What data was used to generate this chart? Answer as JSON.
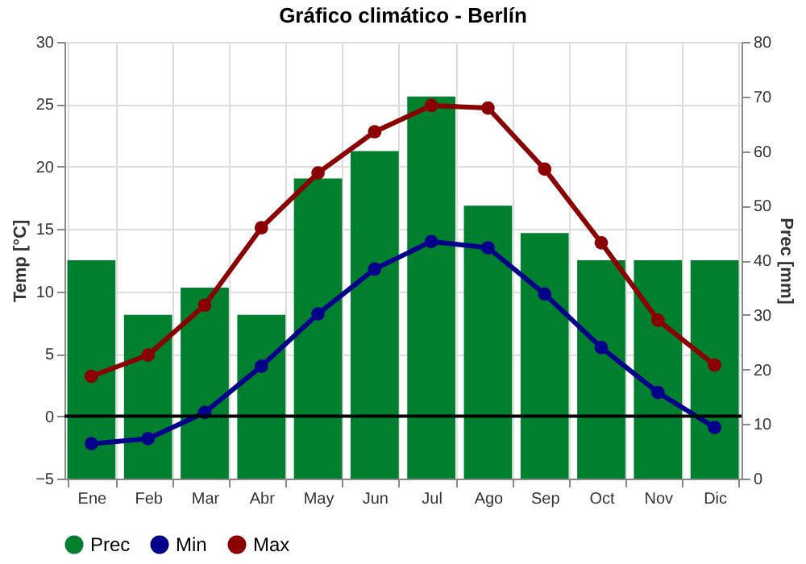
{
  "chart_data": {
    "type": "line",
    "title": "Gráfico climático - Berlín",
    "categories": [
      "Ene",
      "Feb",
      "Mar",
      "Abr",
      "May",
      "Jun",
      "Jul",
      "Ago",
      "Sep",
      "Oct",
      "Nov",
      "Dic"
    ],
    "series": [
      {
        "name": "Prec",
        "type": "bar",
        "axis": "y2",
        "color": "#007f2e",
        "values": [
          40,
          30,
          35,
          30,
          55,
          60,
          70,
          50,
          45,
          40,
          40,
          40
        ]
      },
      {
        "name": "Min",
        "color": "#00008b",
        "values": [
          -2.2,
          -1.8,
          0.3,
          4.0,
          8.2,
          11.8,
          14.0,
          13.5,
          9.8,
          5.5,
          1.9,
          -0.9
        ]
      },
      {
        "name": "Max",
        "color": "#8b0000",
        "values": [
          3.2,
          4.9,
          8.9,
          15.1,
          19.5,
          22.8,
          24.9,
          24.7,
          19.8,
          13.9,
          7.7,
          4.1
        ]
      }
    ],
    "ylabel": "Temp [°C]",
    "y2label": "Prec [mm]",
    "ylim": [
      -5,
      30
    ],
    "yticks": [
      -5,
      0,
      5,
      10,
      15,
      20,
      25,
      30
    ],
    "y2lim": [
      0,
      80
    ],
    "y2ticks": [
      0,
      10,
      20,
      30,
      40,
      50,
      60,
      70,
      80
    ],
    "ref_lines": [
      {
        "axis": "y",
        "value": 0,
        "color": "#000000"
      }
    ],
    "grid": true,
    "legend": "bottom",
    "marker": "circle",
    "line_style": "solid"
  }
}
